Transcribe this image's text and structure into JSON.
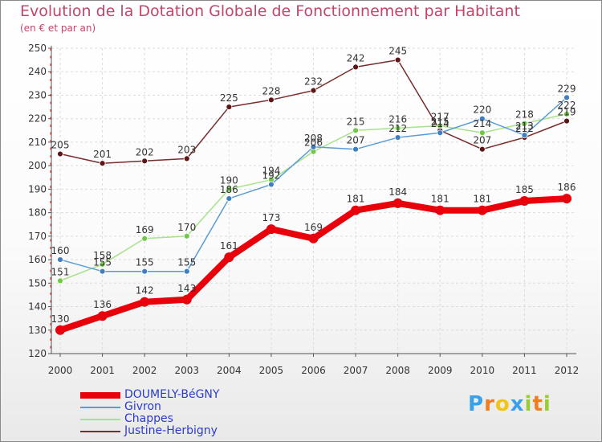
{
  "title": "Evolution de la Dotation Globale de Fonctionnement par Habitant",
  "subtitle": "(en € et par an)",
  "logo": {
    "letters": [
      "P",
      "r",
      "o",
      "x",
      "i",
      "t",
      "i"
    ],
    "colors": [
      "#3aa0e8",
      "#f07d1e",
      "#f2c418",
      "#3aa0e8",
      "#9acd32",
      "#f07d1e",
      "#9acd32"
    ]
  },
  "chart_data": {
    "type": "line",
    "x": [
      "2000",
      "2001",
      "2002",
      "2003",
      "2004",
      "2005",
      "2006",
      "2007",
      "2008",
      "2009",
      "2010",
      "2011",
      "2012"
    ],
    "ylim": [
      120,
      250
    ],
    "yticks": [
      120,
      130,
      140,
      150,
      160,
      170,
      180,
      190,
      200,
      210,
      220,
      230,
      240,
      250
    ],
    "grid": true,
    "legend_position": "bottom-left",
    "series": [
      {
        "name": "DOUMELY-BéGNY",
        "color": "#e8000b",
        "marker": "#e8000b",
        "width": 8,
        "values": [
          130,
          136,
          142,
          143,
          161,
          173,
          169,
          181,
          184,
          181,
          181,
          185,
          186
        ]
      },
      {
        "name": "Givron",
        "color": "#5b9bd5",
        "marker": "#3f7fc1",
        "width": 1.5,
        "values": [
          160,
          155,
          155,
          155,
          186,
          192,
          208,
          207,
          212,
          214,
          220,
          213,
          229
        ]
      },
      {
        "name": "Chappes",
        "color": "#a6e38a",
        "marker": "#71c846",
        "width": 1.5,
        "values": [
          151,
          158,
          169,
          170,
          190,
          194,
          206,
          215,
          216,
          217,
          214,
          218,
          222
        ]
      },
      {
        "name": "Justine-Herbigny",
        "color": "#7a2b2b",
        "marker": "#5c1717",
        "width": 1.5,
        "values": [
          205,
          201,
          202,
          203,
          225,
          228,
          232,
          242,
          245,
          215,
          207,
          212,
          219
        ]
      }
    ]
  }
}
